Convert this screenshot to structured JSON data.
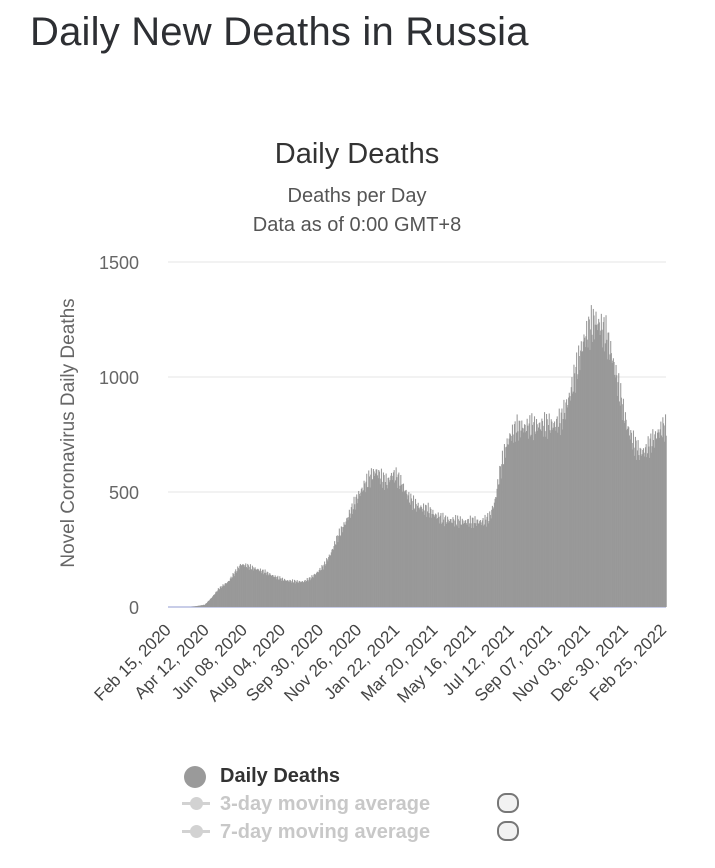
{
  "page": {
    "heading": "Daily New Deaths in Russia"
  },
  "chart_data": {
    "type": "bar",
    "title": "Daily Deaths",
    "subtitle": "Deaths per Day",
    "subtitle2": "Data as of 0:00 GMT+8",
    "ylabel": "Novel Coronavirus Daily Deaths",
    "xlabel": "",
    "ylim": [
      0,
      1500
    ],
    "yticks": [
      0,
      500,
      1000,
      1500
    ],
    "x_start": "Feb 15, 2020",
    "x_end": "Mar 01, 2022",
    "xtick_labels": [
      "Feb 15, 2020",
      "Apr 12, 2020",
      "Jun 08, 2020",
      "Aug 04, 2020",
      "Sep 30, 2020",
      "Nov 26, 2020",
      "Jan 22, 2021",
      "Mar 20, 2021",
      "May 16, 2021",
      "Jul 12, 2021",
      "Sep 07, 2021",
      "Nov 03, 2021",
      "Dec 30, 2021",
      "Feb 25, 2022"
    ],
    "grid": true,
    "bar_color": "#999999",
    "series": [
      {
        "name": "Daily Deaths",
        "points": [
          [
            "Feb 15, 2020",
            0
          ],
          [
            "Mar 20, 2020",
            0
          ],
          [
            "Apr 10, 2020",
            10
          ],
          [
            "Apr 20, 2020",
            40
          ],
          [
            "May 01, 2020",
            80
          ],
          [
            "May 15, 2020",
            110
          ],
          [
            "May 25, 2020",
            150
          ],
          [
            "Jun 03, 2020",
            185
          ],
          [
            "Jun 10, 2020",
            180
          ],
          [
            "Jun 20, 2020",
            170
          ],
          [
            "Jul 01, 2020",
            160
          ],
          [
            "Jul 10, 2020",
            150
          ],
          [
            "Jul 25, 2020",
            130
          ],
          [
            "Aug 10, 2020",
            115
          ],
          [
            "Aug 25, 2020",
            110
          ],
          [
            "Sep 05, 2020",
            110
          ],
          [
            "Sep 15, 2020",
            125
          ],
          [
            "Sep 25, 2020",
            150
          ],
          [
            "Oct 05, 2020",
            180
          ],
          [
            "Oct 15, 2020",
            230
          ],
          [
            "Oct 25, 2020",
            300
          ],
          [
            "Nov 05, 2020",
            360
          ],
          [
            "Nov 15, 2020",
            420
          ],
          [
            "Nov 25, 2020",
            480
          ],
          [
            "Dec 05, 2020",
            530
          ],
          [
            "Dec 15, 2020",
            570
          ],
          [
            "Dec 22, 2020",
            590
          ],
          [
            "Dec 30, 2020",
            560
          ],
          [
            "Jan 08, 2021",
            540
          ],
          [
            "Jan 15, 2021",
            575
          ],
          [
            "Jan 22, 2021",
            565
          ],
          [
            "Feb 01, 2021",
            520
          ],
          [
            "Feb 10, 2021",
            470
          ],
          [
            "Feb 20, 2021",
            440
          ],
          [
            "Mar 01, 2021",
            430
          ],
          [
            "Mar 10, 2021",
            420
          ],
          [
            "Mar 20, 2021",
            400
          ],
          [
            "Apr 01, 2021",
            380
          ],
          [
            "Apr 15, 2021",
            375
          ],
          [
            "May 01, 2021",
            370
          ],
          [
            "May 15, 2021",
            370
          ],
          [
            "Jun 01, 2021",
            370
          ],
          [
            "Jun 10, 2021",
            390
          ],
          [
            "Jun 18, 2021",
            460
          ],
          [
            "Jun 25, 2021",
            580
          ],
          [
            "Jul 02, 2021",
            670
          ],
          [
            "Jul 10, 2021",
            740
          ],
          [
            "Jul 20, 2021",
            775
          ],
          [
            "Aug 01, 2021",
            780
          ],
          [
            "Aug 15, 2021",
            785
          ],
          [
            "Sep 01, 2021",
            790
          ],
          [
            "Sep 15, 2021",
            790
          ],
          [
            "Sep 25, 2021",
            810
          ],
          [
            "Oct 01, 2021",
            860
          ],
          [
            "Oct 08, 2021",
            920
          ],
          [
            "Oct 15, 2021",
            1000
          ],
          [
            "Oct 22, 2021",
            1080
          ],
          [
            "Oct 29, 2021",
            1160
          ],
          [
            "Nov 05, 2021",
            1200
          ],
          [
            "Nov 12, 2021",
            1230
          ],
          [
            "Nov 18, 2021",
            1235
          ],
          [
            "Nov 25, 2021",
            1210
          ],
          [
            "Dec 02, 2021",
            1170
          ],
          [
            "Dec 10, 2021",
            1090
          ],
          [
            "Dec 18, 2021",
            980
          ],
          [
            "Dec 25, 2021",
            880
          ],
          [
            "Jan 01, 2022",
            790
          ],
          [
            "Jan 10, 2022",
            720
          ],
          [
            "Jan 20, 2022",
            670
          ],
          [
            "Jan 30, 2022",
            680
          ],
          [
            "Feb 08, 2022",
            720
          ],
          [
            "Feb 18, 2022",
            760
          ],
          [
            "Feb 25, 2022",
            780
          ],
          [
            "Mar 01, 2022",
            780
          ]
        ]
      }
    ],
    "legend": [
      {
        "name": "Daily Deaths",
        "visible": true
      },
      {
        "name": "3-day moving average",
        "visible": false
      },
      {
        "name": "7-day moving average",
        "visible": false
      }
    ]
  }
}
